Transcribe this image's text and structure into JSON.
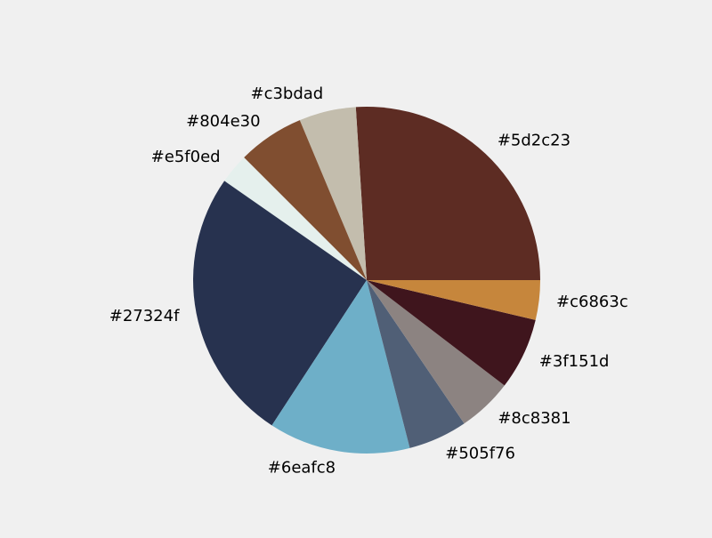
{
  "chart_data": {
    "type": "pie",
    "title": "",
    "start_angle_deg": 0,
    "direction": "counterclockwise",
    "legend": "none",
    "slices": [
      {
        "label": "#5d2c23",
        "value": 26.0,
        "color": "#5d2c23"
      },
      {
        "label": "#c3bdad",
        "value": 5.3,
        "color": "#c3bdad"
      },
      {
        "label": "#804e30",
        "value": 6.2,
        "color": "#804e30"
      },
      {
        "label": "#e5f0ed",
        "value": 2.8,
        "color": "#e5f0ed"
      },
      {
        "label": "#27324f",
        "value": 25.5,
        "color": "#27324f"
      },
      {
        "label": "#6eafc8",
        "value": 13.2,
        "color": "#6eafc8"
      },
      {
        "label": "#505f76",
        "value": 5.5,
        "color": "#505f76"
      },
      {
        "label": "#8c8381",
        "value": 5.1,
        "color": "#8c8381"
      },
      {
        "label": "#3f151d",
        "value": 6.7,
        "color": "#3f151d"
      },
      {
        "label": "#c6863c",
        "value": 3.7,
        "color": "#c6863c"
      }
    ]
  }
}
